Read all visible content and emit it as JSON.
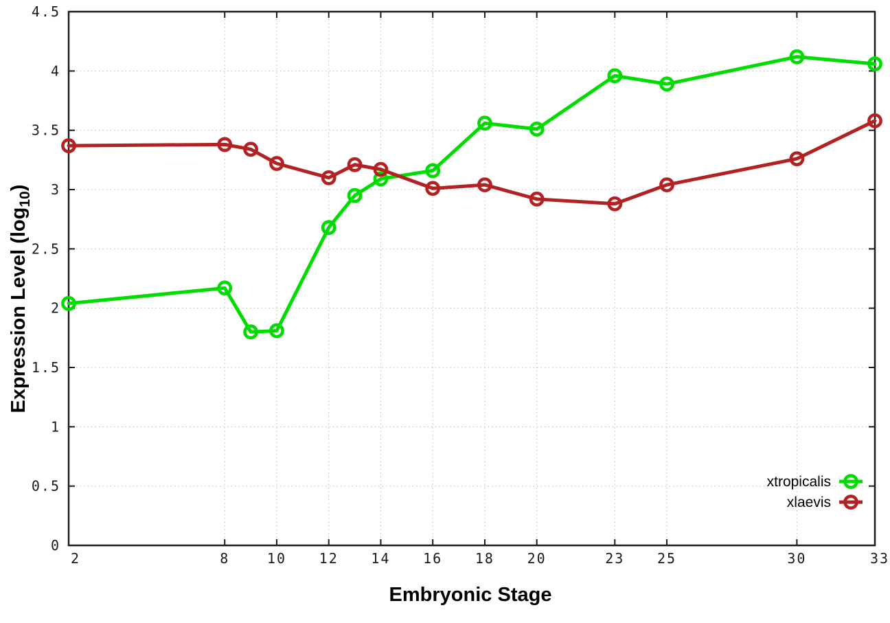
{
  "figure": {
    "background": "#ffffff",
    "xlabel": "Embryonic Stage",
    "ylabel": {
      "prefix": "Expression Level (log",
      "sub": "10",
      "suffix": ")"
    }
  },
  "chart_data": {
    "type": "line",
    "title": "",
    "xlabel": "Embryonic Stage",
    "ylabel": "Expression Level (log10)",
    "x": [
      2,
      8,
      9,
      10,
      12,
      13,
      14,
      16,
      18,
      20,
      23,
      25,
      30,
      33
    ],
    "xticks": [
      2,
      8,
      10,
      12,
      14,
      16,
      18,
      20,
      23,
      25,
      30,
      33
    ],
    "yticks": [
      0,
      0.5,
      1,
      1.5,
      2,
      2.5,
      3,
      3.5,
      4,
      4.5
    ],
    "xlim": [
      2,
      33
    ],
    "ylim": [
      0,
      4.5
    ],
    "grid": true,
    "legend_position": "inside lower right",
    "marker": "open-circle",
    "series": [
      {
        "name": "xtropicalis",
        "color": "#00dc00",
        "values": [
          2.04,
          2.17,
          1.8,
          1.81,
          2.68,
          2.95,
          3.09,
          3.16,
          3.56,
          3.51,
          3.96,
          3.89,
          4.12,
          4.06
        ]
      },
      {
        "name": "xlaevis",
        "color": "#b22222",
        "values": [
          3.37,
          3.38,
          3.34,
          3.22,
          3.1,
          3.21,
          3.17,
          3.01,
          3.04,
          2.92,
          2.88,
          3.04,
          3.26,
          3.58
        ]
      }
    ],
    "colors": {
      "grid": "#b8b8b8",
      "border": "#1a1a1a",
      "tick": "#1a1a1a",
      "text": "#000000"
    }
  }
}
